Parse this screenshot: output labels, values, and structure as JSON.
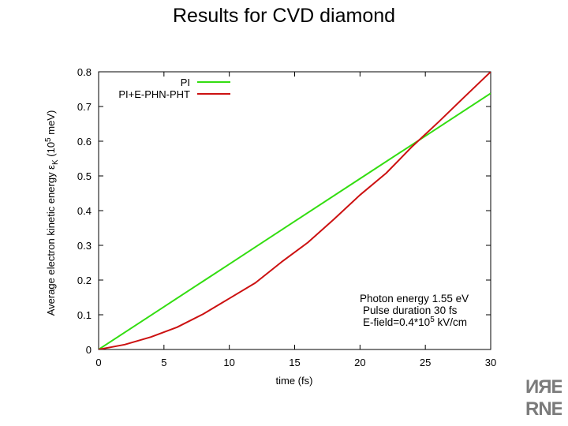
{
  "slide": {
    "title": "Results for CVD diamond",
    "logo_text": [
      "ИЯЕ",
      "RNE"
    ]
  },
  "colors": {
    "PI": "#33dd11",
    "PI+E-PHN-PHT": "#cc1111",
    "frame": "#000000",
    "logo": "#7b7b7b"
  },
  "chart_data": {
    "type": "line",
    "title": "",
    "xlabel": "time (fs)",
    "ylabel": {
      "prefix": "Average electron kinetic energy ε",
      "subscript": "K",
      "mid": " (10",
      "superscript": "5",
      "suffix": " meV)"
    },
    "xlim": [
      0,
      30
    ],
    "ylim": [
      0,
      0.8
    ],
    "xticks": [
      0,
      5,
      10,
      15,
      20,
      25,
      30
    ],
    "yticks": [
      0,
      0.1,
      0.2,
      0.3,
      0.4,
      0.5,
      0.6,
      0.7,
      0.8
    ],
    "grid": false,
    "legend_position": "top-right",
    "series": [
      {
        "name": "PI",
        "color": "#33dd11",
        "x": [
          0,
          5,
          10,
          15,
          20,
          25,
          30
        ],
        "y": [
          0,
          0.123,
          0.246,
          0.369,
          0.492,
          0.615,
          0.738
        ]
      },
      {
        "name": "PI+E-PHN-PHT",
        "color": "#cc1111",
        "x": [
          0,
          2,
          4,
          6,
          8,
          10,
          12,
          14,
          16,
          18,
          20,
          22,
          24,
          26,
          28,
          30
        ],
        "y": [
          0,
          0.014,
          0.036,
          0.064,
          0.102,
          0.147,
          0.192,
          0.252,
          0.308,
          0.375,
          0.445,
          0.508,
          0.585,
          0.655,
          0.728,
          0.8
        ]
      }
    ],
    "annotation": {
      "line1": "Photon energy 1.55 eV",
      "line2": "Pulse duration 30 fs",
      "line3_prefix": "E-field=0.4*10",
      "line3_superscript": "5",
      "line3_suffix": " kV/cm"
    }
  }
}
